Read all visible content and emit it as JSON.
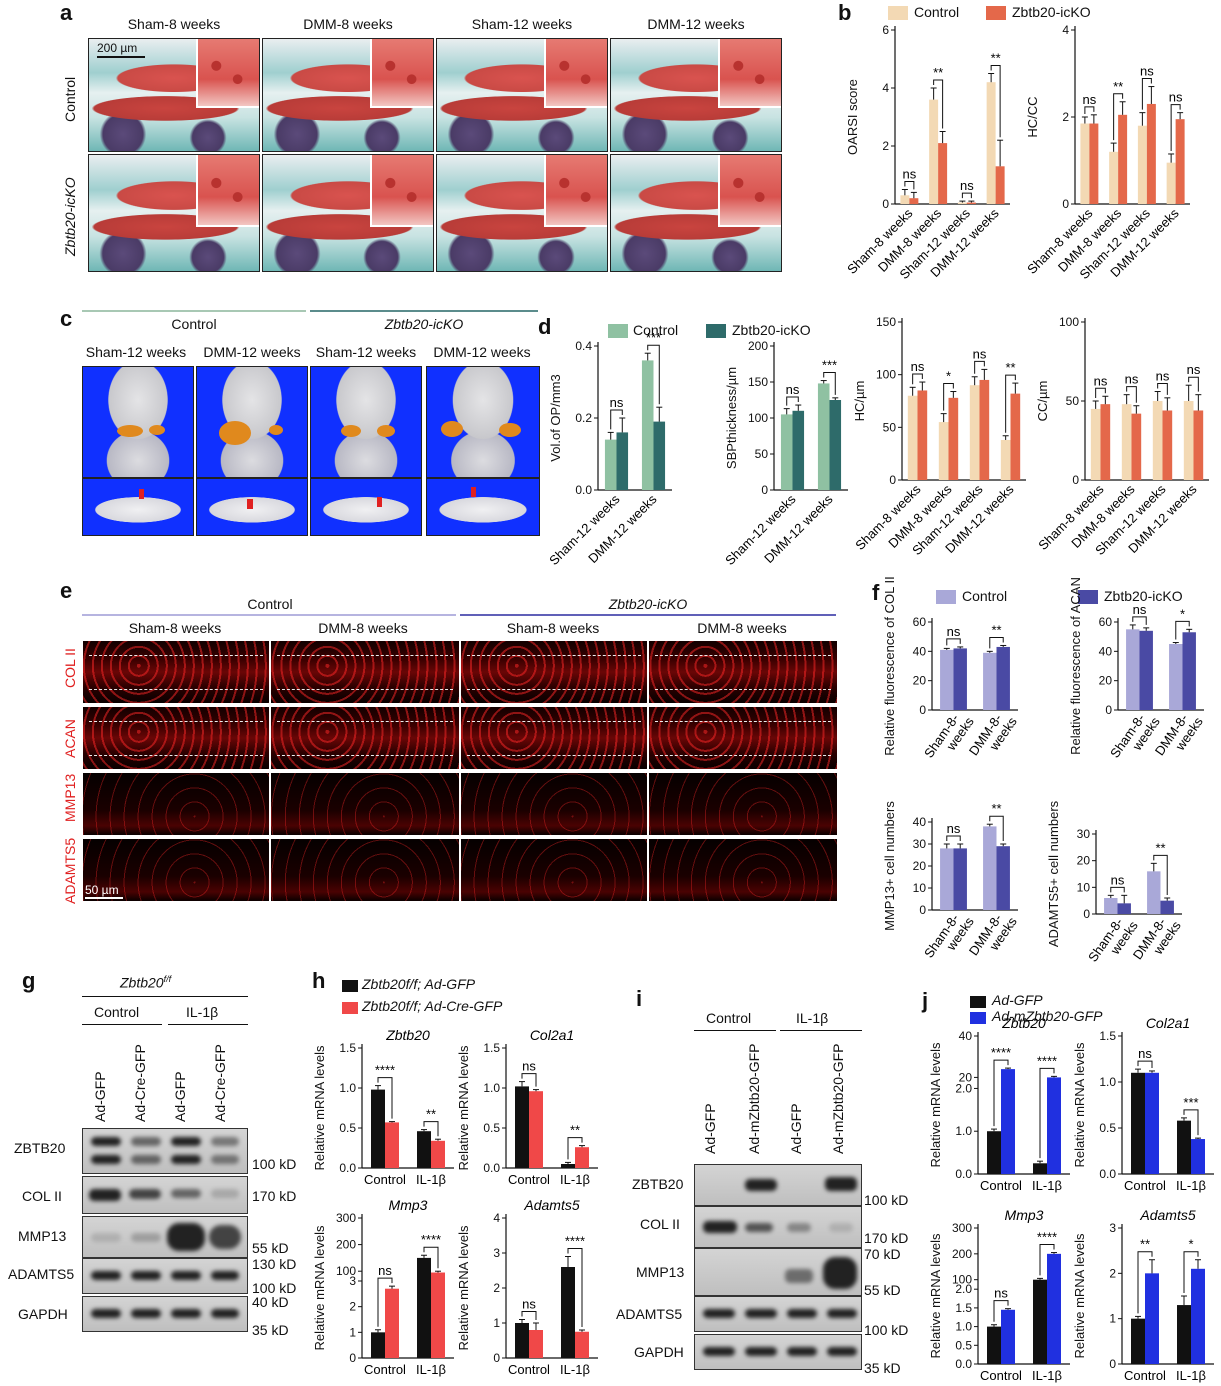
{
  "panels": {
    "a": {
      "letter": "a",
      "headers": [
        "Sham-8 weeks",
        "DMM-8 weeks",
        "Sham-12 weeks",
        "DMM-12 weeks"
      ],
      "rows": [
        "Control",
        "Zbtb20-icKO"
      ],
      "scale": "200 µm"
    },
    "b": {
      "letter": "b",
      "legend": [
        "Control",
        "Zbtb20-icKO"
      ]
    },
    "c": {
      "letter": "c",
      "groups": [
        "Control",
        "Zbtb20-icKO"
      ],
      "headers": [
        "Sham-12 weeks",
        "DMM-12 weeks",
        "Sham-12 weeks",
        "DMM-12 weeks"
      ]
    },
    "d": {
      "letter": "d",
      "legend": [
        "Control",
        "Zbtb20-icKO"
      ]
    },
    "e": {
      "letter": "e",
      "groups": [
        "Control",
        "Zbtb20-icKO"
      ],
      "headers": [
        "Sham-8 weeks",
        "DMM-8 weeks",
        "Sham-8 weeks",
        "DMM-8 weeks"
      ],
      "rows": [
        "COL II",
        "ACAN",
        "MMP13",
        "ADAMTS5"
      ],
      "scale": "50 µm"
    },
    "f": {
      "letter": "f",
      "legend": [
        "Control",
        "Zbtb20-icKO"
      ]
    },
    "g": {
      "letter": "g",
      "genotype": "Zbtb20",
      "genotype_sup": "f/f",
      "conditions": [
        "Control",
        "IL-1β"
      ],
      "lanes": [
        "Ad-GFP",
        "Ad-Cre-GFP",
        "Ad-GFP",
        "Ad-Cre-GFP"
      ],
      "proteins": [
        "ZBTB20",
        "COL II",
        "MMP13",
        "ADAMTS5",
        "GAPDH"
      ],
      "markers": [
        "100 kD",
        "170 kD",
        "55 kD",
        "130 kD",
        "100 kD",
        "40 kD",
        "35 kD"
      ]
    },
    "h": {
      "letter": "h",
      "legend": [
        "Zbtb20f/f; Ad-GFP",
        "Zbtb20f/f; Ad-Cre-GFP"
      ]
    },
    "i": {
      "letter": "i",
      "conditions": [
        "Control",
        "IL-1β"
      ],
      "lanes": [
        "Ad-GFP",
        "Ad-mZbtb20-GFP",
        "Ad-GFP",
        "Ad-mZbtb20-GFP"
      ],
      "proteins": [
        "ZBTB20",
        "COL II",
        "MMP13",
        "ADAMTS5",
        "GAPDH"
      ],
      "markers": [
        "100 kD",
        "170 kD",
        "70 kD",
        "55 kD",
        "100 kD",
        "35 kD"
      ]
    },
    "j": {
      "letter": "j",
      "legend": [
        "Ad-GFP",
        "Ad-mZbtb20-GFP"
      ]
    }
  },
  "chart_data": [
    {
      "id": "b-oarsi",
      "type": "bar",
      "ylabel": "OARSI score",
      "ylim": [
        0,
        6
      ],
      "yticks": [
        0,
        2,
        4,
        6
      ],
      "categories": [
        "Sham-8 weeks",
        "DMM-8 weeks",
        "Sham-12 weeks",
        "DMM-12 weeks"
      ],
      "series": [
        {
          "name": "Control",
          "color": "#f3d9b4",
          "values": [
            0.3,
            3.6,
            0.05,
            4.2
          ],
          "errors": [
            0.2,
            0.4,
            0.05,
            0.3
          ]
        },
        {
          "name": "Zbtb20-icKO",
          "color": "#e4684a",
          "values": [
            0.2,
            2.1,
            0.05,
            1.3
          ],
          "errors": [
            0.2,
            0.4,
            0.05,
            0.9
          ]
        }
      ],
      "sig": [
        "ns",
        "**",
        "ns",
        "**"
      ]
    },
    {
      "id": "b-hccc",
      "type": "bar",
      "ylabel": "HC/CC",
      "ylim": [
        0,
        4
      ],
      "yticks": [
        0,
        2,
        4
      ],
      "categories": [
        "Sham-8 weeks",
        "DMM-8 weeks",
        "Sham-12 weeks",
        "DMM-12 weeks"
      ],
      "series": [
        {
          "name": "Control",
          "color": "#f3d9b4",
          "values": [
            1.85,
            1.2,
            1.8,
            0.95
          ],
          "errors": [
            0.15,
            0.2,
            0.3,
            0.2
          ]
        },
        {
          "name": "Zbtb20-icKO",
          "color": "#e4684a",
          "values": [
            1.85,
            2.05,
            2.3,
            1.95
          ],
          "errors": [
            0.2,
            0.3,
            0.4,
            0.15
          ]
        }
      ],
      "sig": [
        "ns",
        "**",
        "ns",
        "ns"
      ]
    },
    {
      "id": "d-vol",
      "type": "bar",
      "ylabel": "Vol.of OP/mm3",
      "ylim": [
        0,
        0.4
      ],
      "yticks": [
        0.0,
        0.2,
        0.4
      ],
      "categories": [
        "Sham-12 weeks",
        "DMM-12 weeks"
      ],
      "series": [
        {
          "name": "Control",
          "color": "#8fc1a2",
          "values": [
            0.14,
            0.36
          ],
          "errors": [
            0.02,
            0.02
          ]
        },
        {
          "name": "Zbtb20-icKO",
          "color": "#2e6b6a",
          "values": [
            0.16,
            0.19
          ],
          "errors": [
            0.04,
            0.04
          ]
        }
      ],
      "sig": [
        "ns",
        "***"
      ]
    },
    {
      "id": "d-sbp",
      "type": "bar",
      "ylabel": "SBPthickness/µm",
      "ylim": [
        0,
        200
      ],
      "yticks": [
        0,
        50,
        100,
        150,
        200
      ],
      "categories": [
        "Sham-12 weeks",
        "DMM-12 weeks"
      ],
      "series": [
        {
          "name": "Control",
          "color": "#8fc1a2",
          "values": [
            105,
            148
          ],
          "errors": [
            8,
            4
          ]
        },
        {
          "name": "Zbtb20-icKO",
          "color": "#2e6b6a",
          "values": [
            110,
            125
          ],
          "errors": [
            8,
            3
          ]
        }
      ],
      "sig": [
        "ns",
        "***"
      ]
    },
    {
      "id": "b-hc",
      "type": "bar",
      "ylabel": "HC/µm",
      "ylim": [
        0,
        150
      ],
      "yticks": [
        0,
        50,
        100,
        150
      ],
      "categories": [
        "Sham-8 weeks",
        "DMM-8 weeks",
        "Sham-12 weeks",
        "DMM-12 weeks"
      ],
      "series": [
        {
          "name": "Control",
          "color": "#f3d9b4",
          "values": [
            80,
            55,
            90,
            38
          ],
          "errors": [
            8,
            8,
            8,
            4
          ]
        },
        {
          "name": "Zbtb20-icKO",
          "color": "#e4684a",
          "values": [
            85,
            78,
            95,
            82
          ],
          "errors": [
            8,
            6,
            10,
            10
          ]
        }
      ],
      "sig": [
        "ns",
        "*",
        "ns",
        "**"
      ]
    },
    {
      "id": "b-cc",
      "type": "bar",
      "ylabel": "CC/µm",
      "ylim": [
        0,
        100
      ],
      "yticks": [
        0,
        50,
        100
      ],
      "categories": [
        "Sham-8 weeks",
        "DMM-8 weeks",
        "Sham-12 weeks",
        "DMM-12 weeks"
      ],
      "series": [
        {
          "name": "Control",
          "color": "#f3d9b4",
          "values": [
            45,
            48,
            50,
            50
          ],
          "errors": [
            5,
            6,
            6,
            10
          ]
        },
        {
          "name": "Zbtb20-icKO",
          "color": "#e4684a",
          "values": [
            48,
            42,
            44,
            44
          ],
          "errors": [
            5,
            5,
            8,
            10
          ]
        }
      ],
      "sig": [
        "ns",
        "ns",
        "ns",
        "ns"
      ]
    },
    {
      "id": "f-col2",
      "type": "bar",
      "ylabel": "Relative fluorescence of COL II",
      "ylim": [
        0,
        60
      ],
      "yticks": [
        0,
        20,
        40,
        60
      ],
      "categories": [
        "Sham-8 weeks",
        "DMM-8 weeks"
      ],
      "series": [
        {
          "name": "Control",
          "color": "#a9a8d8",
          "values": [
            41,
            39
          ],
          "errors": [
            1,
            1
          ]
        },
        {
          "name": "Zbtb20-icKO",
          "color": "#4a4aa4",
          "values": [
            42,
            43
          ],
          "errors": [
            1,
            1
          ]
        }
      ],
      "sig": [
        "ns",
        "**"
      ]
    },
    {
      "id": "f-acan",
      "type": "bar",
      "ylabel": "Relative fluorescence of ACAN",
      "ylim": [
        0,
        60
      ],
      "yticks": [
        0,
        20,
        40,
        60
      ],
      "categories": [
        "Sham-8 weeks",
        "DMM-8 weeks"
      ],
      "series": [
        {
          "name": "Control",
          "color": "#a9a8d8",
          "values": [
            55,
            45
          ],
          "errors": [
            3,
            1
          ]
        },
        {
          "name": "Zbtb20-icKO",
          "color": "#4a4aa4",
          "values": [
            54,
            53
          ],
          "errors": [
            2,
            2
          ]
        }
      ],
      "sig": [
        "ns",
        "*"
      ]
    },
    {
      "id": "f-mmp13",
      "type": "bar",
      "ylabel": "MMP13+ cell numbers",
      "ylim": [
        0,
        40
      ],
      "yticks": [
        0,
        10,
        20,
        30,
        40
      ],
      "categories": [
        "Sham-8 weeks",
        "DMM-8 weeks"
      ],
      "series": [
        {
          "name": "Control",
          "color": "#a9a8d8",
          "values": [
            28,
            38
          ],
          "errors": [
            2,
            1
          ]
        },
        {
          "name": "Zbtb20-icKO",
          "color": "#4a4aa4",
          "values": [
            28,
            29
          ],
          "errors": [
            2,
            1
          ]
        }
      ],
      "sig": [
        "ns",
        "**"
      ]
    },
    {
      "id": "f-adamts5",
      "type": "bar",
      "ylabel": "ADAMTS5+ cell numbers",
      "ylim": [
        0,
        30
      ],
      "yticks": [
        0,
        10,
        20,
        30
      ],
      "categories": [
        "Sham-8 weeks",
        "DMM-8 weeks"
      ],
      "series": [
        {
          "name": "Control",
          "color": "#a9a8d8",
          "values": [
            6,
            16
          ],
          "errors": [
            1,
            3
          ]
        },
        {
          "name": "Zbtb20-icKO",
          "color": "#4a4aa4",
          "values": [
            4,
            5
          ],
          "errors": [
            3,
            1
          ]
        }
      ],
      "sig": [
        "ns",
        "**"
      ]
    },
    {
      "id": "h-zbtb20",
      "type": "bar",
      "title": "Zbtb20",
      "ylabel": "Relative mRNA levels",
      "ylim": [
        0,
        1.5
      ],
      "yticks": [
        0.0,
        0.5,
        1.0,
        1.5
      ],
      "categories": [
        "Control",
        "IL-1β"
      ],
      "series": [
        {
          "name": "Ad-GFP",
          "color": "#111111",
          "values": [
            0.98,
            0.46
          ],
          "errors": [
            0.05,
            0.02
          ]
        },
        {
          "name": "Ad-Cre-GFP",
          "color": "#f04848",
          "values": [
            0.57,
            0.34
          ],
          "errors": [
            0.01,
            0.02
          ]
        }
      ],
      "sig": [
        "****",
        "**"
      ]
    },
    {
      "id": "h-col2a1",
      "type": "bar",
      "title": "Col2a1",
      "ylabel": "Relative mRNA levels",
      "ylim": [
        0,
        1.5
      ],
      "yticks": [
        0.0,
        0.5,
        1.0,
        1.5
      ],
      "categories": [
        "Control",
        "IL-1β"
      ],
      "series": [
        {
          "name": "Ad-GFP",
          "color": "#111111",
          "values": [
            1.02,
            0.05
          ],
          "errors": [
            0.06,
            0.02
          ]
        },
        {
          "name": "Ad-Cre-GFP",
          "color": "#f04848",
          "values": [
            0.96,
            0.26
          ],
          "errors": [
            0.02,
            0.02
          ]
        }
      ],
      "sig": [
        "ns",
        "**"
      ]
    },
    {
      "id": "h-mmp3",
      "type": "bar",
      "title": "Mmp3",
      "ylabel": "Relative mRNA levels",
      "ylim": [
        0,
        300
      ],
      "yticks": [
        0,
        1,
        2,
        3,
        100,
        200,
        300
      ],
      "categories": [
        "Control",
        "IL-1β"
      ],
      "series": [
        {
          "name": "Ad-GFP",
          "color": "#111111",
          "values": [
            1.0,
            150
          ],
          "errors": [
            0.1,
            10
          ]
        },
        {
          "name": "Ad-Cre-GFP",
          "color": "#f04848",
          "values": [
            2.7,
            95
          ],
          "errors": [
            0.1,
            5
          ]
        }
      ],
      "sig": [
        "ns",
        "****"
      ]
    },
    {
      "id": "h-adamts5",
      "type": "bar",
      "title": "Adamts5",
      "ylabel": "Relative mRNA levels",
      "ylim": [
        0,
        4
      ],
      "yticks": [
        0,
        1,
        2,
        3,
        4
      ],
      "categories": [
        "Control",
        "IL-1β"
      ],
      "series": [
        {
          "name": "Ad-GFP",
          "color": "#111111",
          "values": [
            1.0,
            2.6
          ],
          "errors": [
            0.1,
            0.3
          ]
        },
        {
          "name": "Ad-Cre-GFP",
          "color": "#f04848",
          "values": [
            0.8,
            0.75
          ],
          "errors": [
            0.2,
            0.05
          ]
        }
      ],
      "sig": [
        "ns",
        "****"
      ]
    },
    {
      "id": "j-zbtb20",
      "type": "bar",
      "title": "Zbtb20",
      "ylabel": "Relative mRNA levels",
      "ylim": [
        0,
        40
      ],
      "yticks": [
        0.0,
        1.0,
        2.0,
        20,
        40
      ],
      "categories": [
        "Control",
        "IL-1β"
      ],
      "series": [
        {
          "name": "Ad-GFP",
          "color": "#111111",
          "values": [
            1.0,
            0.25
          ],
          "errors": [
            0.05,
            0.05
          ]
        },
        {
          "name": "Ad-mZbtb20-GFP",
          "color": "#2030e0",
          "values": [
            24,
            20
          ],
          "errors": [
            0.5,
            0.5
          ]
        }
      ],
      "sig": [
        "****",
        "****"
      ]
    },
    {
      "id": "j-col2a1",
      "type": "bar",
      "title": "Col2a1",
      "ylabel": "Relative mRNA levels",
      "ylim": [
        0,
        1.5
      ],
      "yticks": [
        0.0,
        0.5,
        1.0,
        1.5
      ],
      "categories": [
        "Control",
        "IL-1β"
      ],
      "series": [
        {
          "name": "Ad-GFP",
          "color": "#111111",
          "values": [
            1.1,
            0.58
          ],
          "errors": [
            0.04,
            0.03
          ]
        },
        {
          "name": "Ad-mZbtb20-GFP",
          "color": "#2030e0",
          "values": [
            1.1,
            0.38
          ],
          "errors": [
            0.02,
            0.01
          ]
        }
      ],
      "sig": [
        "ns",
        "***"
      ]
    },
    {
      "id": "j-mmp3",
      "type": "bar",
      "title": "Mmp3",
      "ylabel": "Relative mRNA levels",
      "ylim": [
        0,
        300
      ],
      "yticks": [
        0.0,
        0.5,
        1.0,
        1.5,
        2.0,
        100,
        200,
        300
      ],
      "categories": [
        "Control",
        "IL-1β"
      ],
      "series": [
        {
          "name": "Ad-GFP",
          "color": "#111111",
          "values": [
            1.0,
            100
          ],
          "errors": [
            0.05,
            5
          ]
        },
        {
          "name": "Ad-mZbtb20-GFP",
          "color": "#2030e0",
          "values": [
            1.45,
            200
          ],
          "errors": [
            0.03,
            5
          ]
        }
      ],
      "sig": [
        "ns",
        "****"
      ]
    },
    {
      "id": "j-adamts5",
      "type": "bar",
      "title": "Adamts5",
      "ylabel": "Relative mRNA levels",
      "ylim": [
        0,
        3
      ],
      "yticks": [
        0,
        1,
        2,
        3
      ],
      "categories": [
        "Control",
        "IL-1β"
      ],
      "series": [
        {
          "name": "Ad-GFP",
          "color": "#111111",
          "values": [
            1.0,
            1.3
          ],
          "errors": [
            0.05,
            0.2
          ]
        },
        {
          "name": "Ad-mZbtb20-GFP",
          "color": "#2030e0",
          "values": [
            2.0,
            2.1
          ],
          "errors": [
            0.3,
            0.2
          ]
        }
      ],
      "sig": [
        "**",
        "*"
      ]
    }
  ]
}
